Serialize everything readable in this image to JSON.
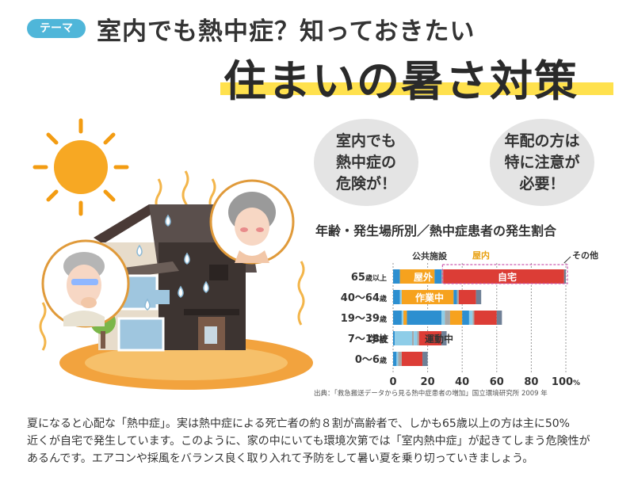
{
  "header": {
    "tag": "テーマ",
    "subtitle": "室内でも熱中症？知っておきたい",
    "title": "住まいの暑さ対策"
  },
  "bubbles": [
    "室内でも\n熱中症の\n危険が！",
    "年配の方は\n特に注意が\n必要！"
  ],
  "chart_data": {
    "type": "bar",
    "title": "年齢・発生場所別／熱中症患者の発生割合",
    "categories": [
      "65歳以上",
      "40〜64歳",
      "19〜39歳",
      "7〜18歳",
      "0〜6歳"
    ],
    "category_parts": [
      [
        "65",
        "歳以上"
      ],
      [
        "40〜64",
        "歳"
      ],
      [
        "19〜39",
        "歳"
      ],
      [
        "7〜18",
        "歳"
      ],
      [
        "0〜6",
        "歳"
      ]
    ],
    "x_ticks": [
      "0",
      "20",
      "40",
      "60",
      "80",
      "100"
    ],
    "x_unit": "%",
    "xlim": [
      0,
      100
    ],
    "colors": [
      "#2d8fd0",
      "#8ecde8",
      "#a7a7a7",
      "#f6a21e",
      "#dc3d36",
      "#6f8096"
    ],
    "rows": [
      [
        4,
        0,
        0,
        20,
        4,
        0,
        0,
        0,
        0,
        0,
        1,
        70,
        1
      ],
      [
        4,
        1,
        0,
        30,
        2,
        0,
        0,
        0,
        0,
        0,
        1,
        10,
        3
      ],
      [
        5,
        1,
        0,
        2,
        20,
        2,
        3,
        7,
        4,
        2,
        1,
        13,
        3
      ],
      [
        1,
        10,
        1,
        0,
        0,
        2,
        0,
        0,
        0,
        0,
        1,
        13,
        3
      ],
      [
        2,
        1,
        0,
        0,
        0,
        0,
        0,
        0,
        0,
        0,
        2,
        12,
        3
      ]
    ],
    "annotations": {
      "public": "公共施設",
      "indoor": "屋内",
      "other": "その他",
      "outdoor": "屋外",
      "home": "自宅",
      "work": "作業中",
      "school": "学校",
      "sports": "運動中"
    },
    "source": "出典：「救急搬送データから見る熱中症患者の増加」国立環境研究所 2009 年"
  },
  "body_lines": [
    "夏になると心配な「熱中症」。実は熱中症による死亡者の約８割が高齢者で、しかも65歳以上の方は主に50%",
    "近くが自宅で発生しています。このように、家の中にいても環境次第では「室内熱中症」が起きてしまう危険性が",
    "あるんです。エアコンや採風をバランス良く取り入れて予防をして暑い夏を乗り切っていきましょう。"
  ]
}
